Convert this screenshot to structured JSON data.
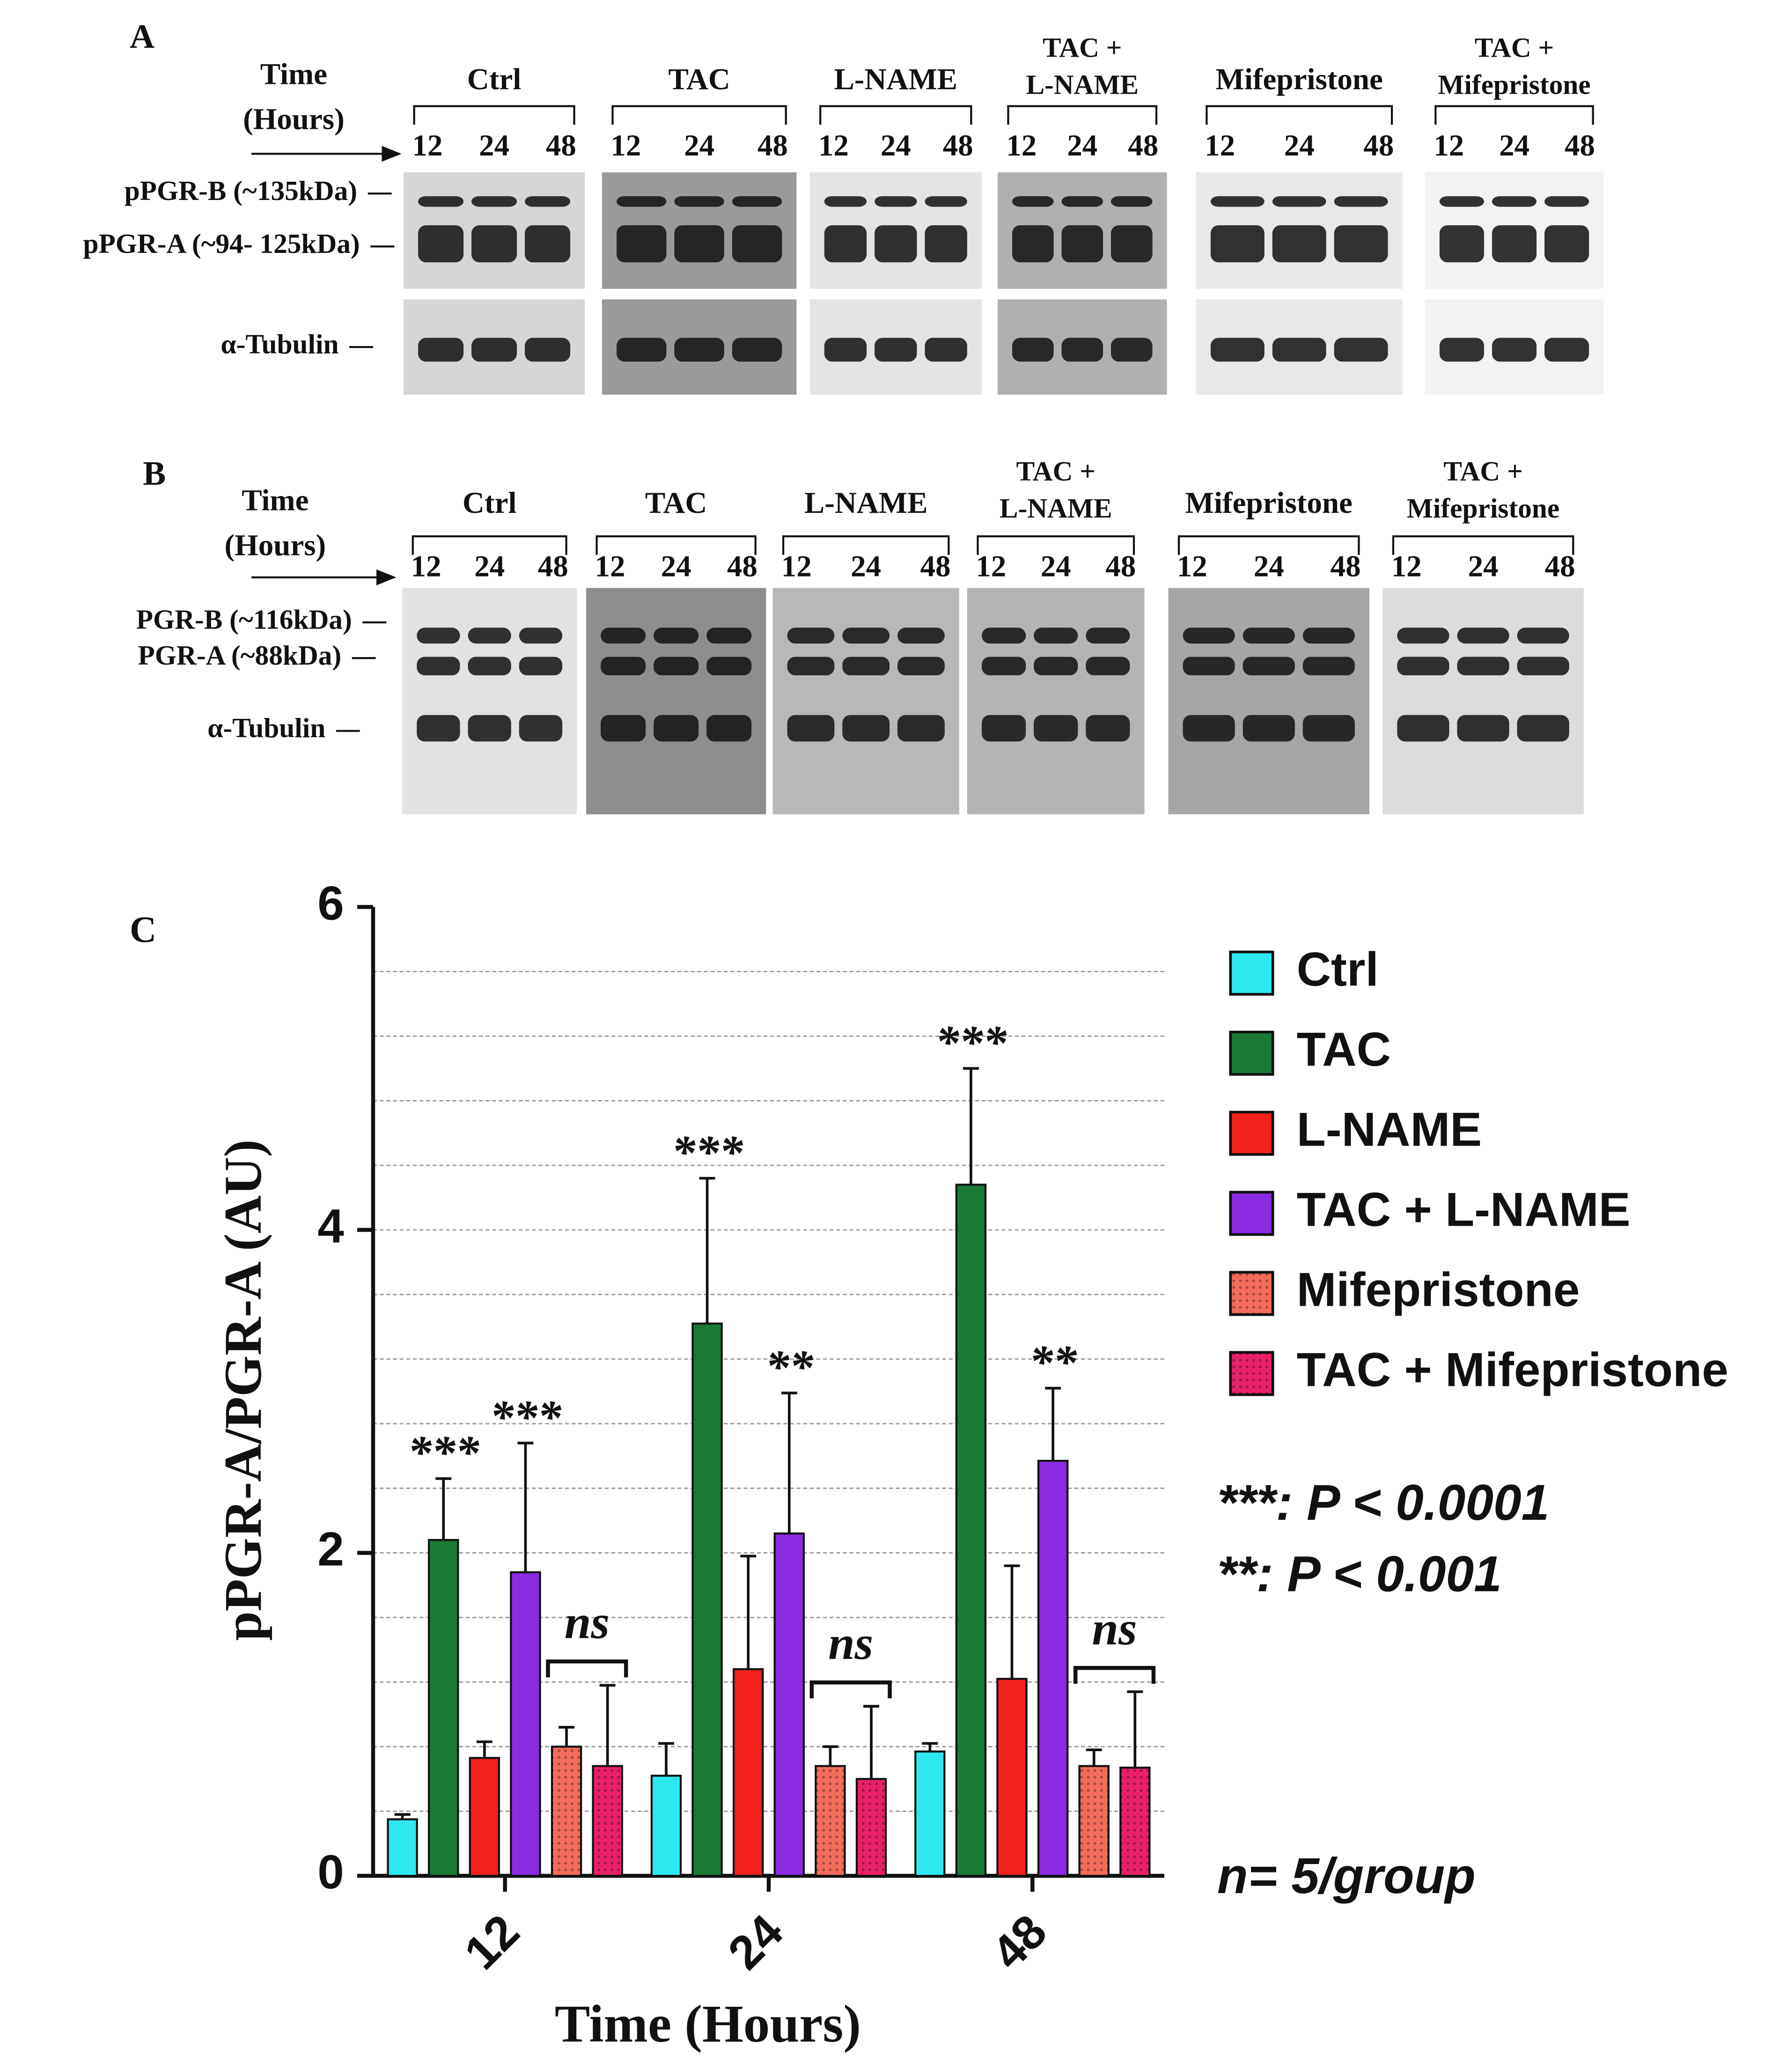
{
  "panel_a": {
    "label": "A",
    "time_label": [
      "Time",
      "(Hours)"
    ],
    "groups": [
      [
        "Ctrl"
      ],
      [
        "TAC"
      ],
      [
        "L-NAME"
      ],
      [
        "TAC +",
        "L-NAME"
      ],
      [
        "Mifepristone"
      ],
      [
        "TAC +",
        "Mifepristone"
      ]
    ],
    "time_points": [
      "12",
      "24",
      "48"
    ],
    "bands": [
      "pPGR-B (~135kDa)",
      "pPGR-A (~94- 125kDa)",
      "α-Tubulin"
    ]
  },
  "panel_b": {
    "label": "B",
    "time_label": [
      "Time",
      "(Hours)"
    ],
    "groups": [
      [
        "Ctrl"
      ],
      [
        "TAC"
      ],
      [
        "L-NAME"
      ],
      [
        "TAC +",
        "L-NAME"
      ],
      [
        "Mifepristone"
      ],
      [
        "TAC +",
        "Mifepristone"
      ]
    ],
    "time_points": [
      "12",
      "24",
      "48"
    ],
    "bands": [
      "PGR-B (~116kDa)",
      "PGR-A (~88kDa)",
      "α-Tubulin"
    ]
  },
  "chart_data": {
    "type": "bar",
    "panel_label": "C",
    "x_label": "Time (Hours)",
    "y_label": "pPGR-A/PGR-A (AU)",
    "categories": [
      "12",
      "24",
      "48"
    ],
    "ylim": [
      0,
      6
    ],
    "yticks": [
      0,
      2,
      4,
      6
    ],
    "grid_lines": [
      0.4,
      0.8,
      1.2,
      1.6,
      2.0,
      2.4,
      2.8,
      3.2,
      3.6,
      4.0,
      4.4,
      4.8,
      5.2,
      5.6
    ],
    "series": [
      {
        "name": "Ctrl",
        "color": "#2ee8f0",
        "values": [
          0.35,
          0.62,
          0.77
        ],
        "errors": [
          0.03,
          0.2,
          0.05
        ]
      },
      {
        "name": "TAC",
        "color": "#1a7a35",
        "values": [
          2.08,
          3.42,
          4.28
        ],
        "errors": [
          0.38,
          0.9,
          0.72
        ]
      },
      {
        "name": "L-NAME",
        "color": "#f0201c",
        "values": [
          0.73,
          1.28,
          1.22
        ],
        "errors": [
          0.1,
          0.7,
          0.7
        ]
      },
      {
        "name": "TAC + L-NAME",
        "color": "#8a2be2",
        "values": [
          1.88,
          2.12,
          2.57
        ],
        "errors": [
          0.8,
          0.87,
          0.45
        ]
      },
      {
        "name": "Mifepristone",
        "color": "#f26b5b",
        "pattern": "dots",
        "values": [
          0.8,
          0.68,
          0.68
        ],
        "errors": [
          0.12,
          0.12,
          0.1
        ]
      },
      {
        "name": "TAC + Mifepristone",
        "color": "#e8206a",
        "pattern": "dots",
        "values": [
          0.68,
          0.6,
          0.67
        ],
        "errors": [
          0.5,
          0.45,
          0.47
        ]
      }
    ],
    "annotations": [
      {
        "text": "***",
        "category": "12",
        "series": [
          "TAC"
        ]
      },
      {
        "text": "***",
        "category": "12",
        "series": [
          "TAC + L-NAME"
        ]
      },
      {
        "text": "ns",
        "category": "12",
        "series": [
          "Mifepristone",
          "TAC + Mifepristone"
        ]
      },
      {
        "text": "***",
        "category": "24",
        "series": [
          "TAC"
        ]
      },
      {
        "text": "**",
        "category": "24",
        "series": [
          "TAC + L-NAME"
        ]
      },
      {
        "text": "ns",
        "category": "24",
        "series": [
          "Mifepristone",
          "TAC + Mifepristone"
        ]
      },
      {
        "text": "***",
        "category": "48",
        "series": [
          "TAC"
        ]
      },
      {
        "text": "**",
        "category": "48",
        "series": [
          "TAC + L-NAME"
        ]
      },
      {
        "text": "ns",
        "category": "48",
        "series": [
          "Mifepristone",
          "TAC + Mifepristone"
        ]
      }
    ],
    "notes": [
      "***: P < 0.0001",
      "**: P < 0.001",
      "n= 5/group"
    ]
  }
}
